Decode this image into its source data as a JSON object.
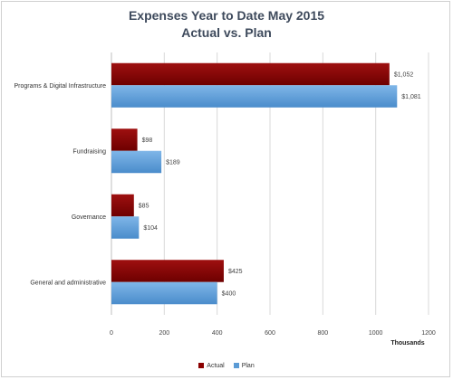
{
  "chart_data": {
    "type": "bar",
    "orientation": "horizontal",
    "title": "Expenses Year to Date May 2015",
    "subtitle": "Actual vs. Plan",
    "categories": [
      "Programs & Digital Infrastructure",
      "Fundraising",
      "Governance",
      "General and administrative"
    ],
    "series": [
      {
        "name": "Actual",
        "values": [
          1052,
          98,
          85,
          425
        ],
        "labels": [
          "$1,052",
          "$98",
          "$85",
          "$425"
        ],
        "color": "#8b0000"
      },
      {
        "name": "Plan",
        "values": [
          1081,
          189,
          104,
          400
        ],
        "labels": [
          "$1,081",
          "$189",
          "$104",
          "$400"
        ],
        "color": "#5b9bd5"
      }
    ],
    "xlim": [
      0,
      1200
    ],
    "xticks": [
      "0",
      "200",
      "400",
      "600",
      "800",
      "1000",
      "1200"
    ],
    "xlabel": "Thousands",
    "ylabel": "",
    "grid": true,
    "legend": "bottom"
  }
}
